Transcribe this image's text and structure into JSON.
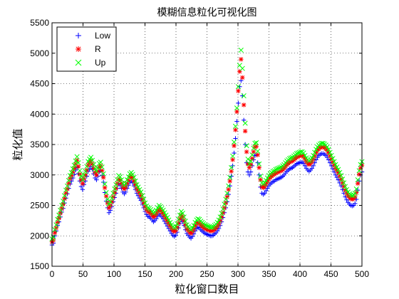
{
  "chart_data": {
    "type": "scatter",
    "title": "模糊信息粒化可视化图",
    "xlabel": "粒化窗口数目",
    "ylabel": "粒化值",
    "xlim": [
      0,
      500
    ],
    "ylim": [
      1500,
      5500
    ],
    "xticks": [
      "0",
      "50",
      "100",
      "150",
      "200",
      "250",
      "300",
      "350",
      "400",
      "450",
      "500"
    ],
    "yticks": [
      "1500",
      "2000",
      "2500",
      "3000",
      "3500",
      "4000",
      "4500",
      "5000",
      "5500"
    ],
    "grid": true,
    "legend_position": "top-left",
    "series": [
      {
        "name": "Low",
        "marker": "+",
        "color": "#0000ff",
        "values": [
          1850,
          1880,
          2000,
          2080,
          2170,
          2230,
          2310,
          2390,
          2450,
          2540,
          2620,
          2690,
          2780,
          2850,
          2900,
          2950,
          3010,
          3080,
          3120,
          3020,
          2900,
          2810,
          2760,
          2840,
          2900,
          2980,
          3060,
          3100,
          3140,
          3090,
          3020,
          2950,
          2920,
          2980,
          3050,
          3070,
          2990,
          2880,
          2710,
          2570,
          2460,
          2380,
          2420,
          2480,
          2560,
          2630,
          2700,
          2780,
          2850,
          2830,
          2780,
          2720,
          2690,
          2720,
          2780,
          2830,
          2880,
          2900,
          2870,
          2820,
          2760,
          2700,
          2660,
          2620,
          2580,
          2520,
          2460,
          2400,
          2350,
          2320,
          2310,
          2290,
          2260,
          2230,
          2250,
          2280,
          2320,
          2360,
          2340,
          2310,
          2280,
          2240,
          2200,
          2160,
          2120,
          2080,
          2040,
          2010,
          1990,
          2010,
          2060,
          2130,
          2200,
          2260,
          2230,
          2170,
          2100,
          2040,
          2010,
          1980,
          1960,
          1990,
          2030,
          2080,
          2120,
          2140,
          2130,
          2100,
          2080,
          2060,
          2040,
          2030,
          2020,
          2010,
          2000,
          2000,
          2010,
          2030,
          2050,
          2080,
          2120,
          2170,
          2230,
          2300,
          2380,
          2460,
          2560,
          2680,
          2820,
          2980,
          3150,
          3360,
          3600,
          3880,
          4180,
          4450,
          4550,
          4300,
          3900,
          3500,
          3200,
          3050,
          3000,
          3050,
          3150,
          3250,
          3320,
          3330,
          3200,
          3000,
          2800,
          2700,
          2680,
          2700,
          2740,
          2780,
          2820,
          2850,
          2870,
          2890,
          2900,
          2920,
          2930,
          2940,
          2950,
          2960,
          2980,
          3000,
          3030,
          3060,
          3080,
          3100,
          3110,
          3120,
          3140,
          3160,
          3180,
          3190,
          3200,
          3210,
          3210,
          3190,
          3150,
          3110,
          3080,
          3060,
          3080,
          3110,
          3150,
          3200,
          3250,
          3290,
          3320,
          3340,
          3350,
          3350,
          3340,
          3320,
          3290,
          3250,
          3200,
          3150,
          3100,
          3050,
          3000,
          2960,
          2920,
          2870,
          2820,
          2760,
          2700,
          2640,
          2590,
          2550,
          2520,
          2500,
          2490,
          2500,
          2530,
          2600,
          2750,
          2900,
          3000,
          3050
        ]
      },
      {
        "name": "R",
        "marker": "*",
        "color": "#ff0000",
        "values": [
          1900,
          1930,
          2050,
          2130,
          2220,
          2290,
          2370,
          2450,
          2520,
          2610,
          2700,
          2770,
          2860,
          2940,
          2990,
          3050,
          3110,
          3180,
          3240,
          3140,
          3010,
          2920,
          2860,
          2940,
          3000,
          3080,
          3160,
          3200,
          3230,
          3180,
          3110,
          3040,
          3000,
          3060,
          3130,
          3150,
          3070,
          2960,
          2790,
          2650,
          2540,
          2460,
          2500,
          2560,
          2640,
          2710,
          2780,
          2860,
          2930,
          2910,
          2860,
          2800,
          2770,
          2800,
          2860,
          2910,
          2960,
          2980,
          2950,
          2900,
          2840,
          2780,
          2740,
          2700,
          2660,
          2600,
          2540,
          2480,
          2430,
          2400,
          2390,
          2370,
          2340,
          2310,
          2330,
          2360,
          2400,
          2440,
          2420,
          2390,
          2360,
          2320,
          2280,
          2240,
          2200,
          2160,
          2120,
          2090,
          2070,
          2090,
          2140,
          2210,
          2280,
          2340,
          2310,
          2250,
          2180,
          2120,
          2090,
          2060,
          2040,
          2070,
          2110,
          2160,
          2200,
          2220,
          2210,
          2180,
          2160,
          2140,
          2120,
          2110,
          2100,
          2090,
          2080,
          2080,
          2090,
          2110,
          2130,
          2160,
          2200,
          2250,
          2310,
          2380,
          2460,
          2540,
          2640,
          2760,
          2900,
          3060,
          3250,
          3480,
          3740,
          4040,
          4380,
          4700,
          4900,
          4600,
          4150,
          3720,
          3380,
          3180,
          3120,
          3170,
          3270,
          3380,
          3460,
          3470,
          3330,
          3120,
          2920,
          2810,
          2790,
          2810,
          2850,
          2890,
          2930,
          2960,
          2980,
          3000,
          3010,
          3030,
          3040,
          3050,
          3060,
          3070,
          3090,
          3110,
          3140,
          3170,
          3190,
          3210,
          3220,
          3230,
          3250,
          3270,
          3290,
          3300,
          3310,
          3320,
          3320,
          3300,
          3260,
          3220,
          3190,
          3170,
          3190,
          3220,
          3260,
          3310,
          3360,
          3400,
          3430,
          3450,
          3460,
          3460,
          3450,
          3430,
          3400,
          3360,
          3310,
          3260,
          3210,
          3160,
          3110,
          3070,
          3030,
          2980,
          2930,
          2870,
          2810,
          2750,
          2700,
          2660,
          2630,
          2610,
          2600,
          2610,
          2640,
          2710,
          2860,
          3010,
          3110,
          3160
        ]
      },
      {
        "name": "Up",
        "marker": "x",
        "color": "#00ff00",
        "values": [
          1950,
          1980,
          2100,
          2180,
          2270,
          2340,
          2420,
          2500,
          2570,
          2660,
          2750,
          2820,
          2910,
          2990,
          3040,
          3100,
          3160,
          3230,
          3300,
          3200,
          3070,
          2980,
          2920,
          3000,
          3060,
          3140,
          3220,
          3260,
          3290,
          3240,
          3170,
          3100,
          3060,
          3120,
          3190,
          3210,
          3130,
          3020,
          2850,
          2710,
          2600,
          2520,
          2560,
          2620,
          2700,
          2770,
          2840,
          2920,
          2990,
          2970,
          2920,
          2860,
          2830,
          2860,
          2920,
          2970,
          3020,
          3040,
          3010,
          2960,
          2900,
          2840,
          2800,
          2760,
          2720,
          2660,
          2600,
          2540,
          2490,
          2460,
          2450,
          2430,
          2400,
          2370,
          2390,
          2420,
          2460,
          2500,
          2480,
          2450,
          2420,
          2380,
          2340,
          2300,
          2260,
          2220,
          2180,
          2150,
          2130,
          2150,
          2200,
          2270,
          2340,
          2400,
          2370,
          2310,
          2240,
          2180,
          2150,
          2120,
          2100,
          2130,
          2170,
          2220,
          2260,
          2280,
          2270,
          2240,
          2220,
          2200,
          2180,
          2170,
          2160,
          2150,
          2140,
          2140,
          2150,
          2170,
          2190,
          2220,
          2260,
          2310,
          2370,
          2440,
          2520,
          2600,
          2700,
          2820,
          2960,
          3120,
          3310,
          3540,
          3800,
          4100,
          4450,
          4800,
          5050,
          4750,
          4300,
          3850,
          3480,
          3260,
          3180,
          3230,
          3330,
          3440,
          3520,
          3530,
          3390,
          3180,
          2980,
          2870,
          2850,
          2870,
          2910,
          2950,
          2990,
          3020,
          3040,
          3060,
          3070,
          3090,
          3100,
          3110,
          3120,
          3130,
          3150,
          3170,
          3200,
          3230,
          3250,
          3270,
          3280,
          3290,
          3310,
          3330,
          3350,
          3360,
          3370,
          3380,
          3380,
          3360,
          3320,
          3280,
          3250,
          3230,
          3250,
          3280,
          3320,
          3370,
          3420,
          3460,
          3490,
          3510,
          3520,
          3520,
          3510,
          3490,
          3460,
          3420,
          3370,
          3320,
          3270,
          3220,
          3170,
          3130,
          3090,
          3040,
          2990,
          2930,
          2870,
          2810,
          2760,
          2720,
          2690,
          2670,
          2660,
          2670,
          2700,
          2770,
          2920,
          3070,
          3170,
          3220
        ]
      }
    ]
  }
}
